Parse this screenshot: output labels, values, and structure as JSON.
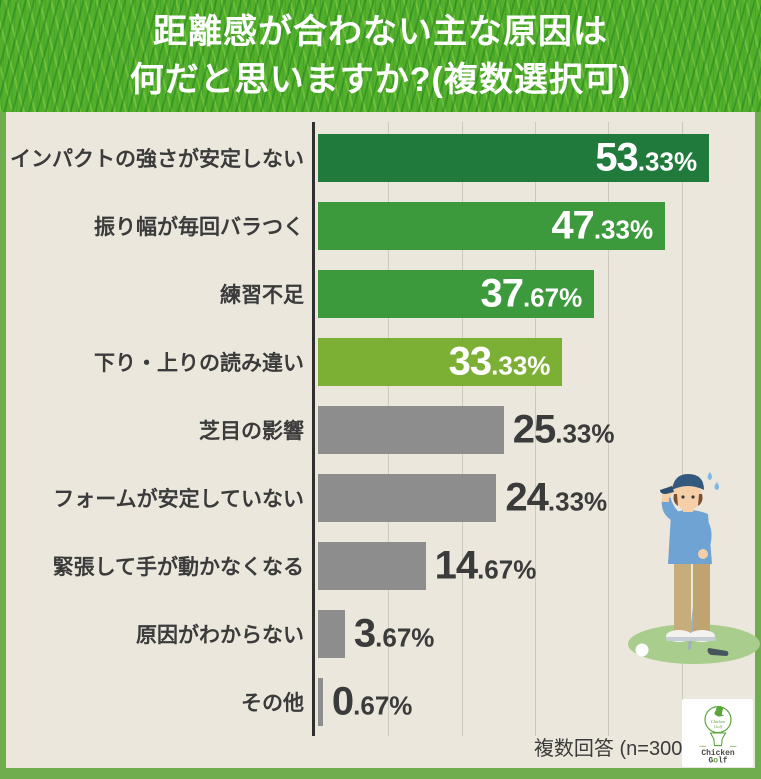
{
  "header": {
    "title_line1": "距離感が合わない主な原因は",
    "title_line2": "何だと思いますか?(複数選択可)"
  },
  "chart_data": {
    "type": "bar",
    "orientation": "horizontal",
    "title": "距離感が合わない主な原因は何だと思いますか?(複数選択可)",
    "categories": [
      "インパクトの強さが安定しない",
      "振り幅が毎回バラつく",
      "練習不足",
      "下り・上りの読み違い",
      "芝目の影響",
      "フォームが安定していない",
      "緊張して手が動かなくなる",
      "原因がわからない",
      "その他"
    ],
    "values": [
      53.33,
      47.33,
      37.67,
      33.33,
      25.33,
      24.33,
      14.67,
      3.67,
      0.67
    ],
    "bar_colors": [
      "#1f7a3c",
      "#3c9a3d",
      "#3c9a3d",
      "#7cb034",
      "#8d8d8d",
      "#8d8d8d",
      "#8d8d8d",
      "#8d8d8d",
      "#8d8d8d"
    ],
    "value_inside_bar": [
      true,
      true,
      true,
      true,
      false,
      false,
      false,
      false,
      false
    ],
    "value_color_inside": "#ffffff",
    "value_color_outside": "#3b3b3b",
    "xlim": [
      0,
      60
    ],
    "gridline_step_percent": 10,
    "grid": true,
    "unit": "%",
    "note": "複数回答 (n=300)"
  },
  "footer": {
    "note": "複数回答 (n=300)"
  },
  "logo": {
    "name": "chicken-golf-logo",
    "icon": "rooster-on-golf-tee-icon",
    "text_line1": "Chicken",
    "golf_g": "G",
    "golf_o": "o",
    "golf_lf": "lf",
    "accent_color": "#5aa53c"
  },
  "illustration": {
    "name": "golfer-scratching-head"
  },
  "colors": {
    "frame_green": "#70ad4f",
    "background_beige": "#ebe7dc",
    "grass_green": "#54b02a",
    "title_text": "#ffffff",
    "dark_green_bar": "#1f7a3c",
    "mid_green_bar": "#3c9a3d",
    "light_green_bar": "#7cb034",
    "gray_bar": "#8d8d8d",
    "text_dark": "#3b3b3b",
    "gridline": "#cbc8bd"
  }
}
